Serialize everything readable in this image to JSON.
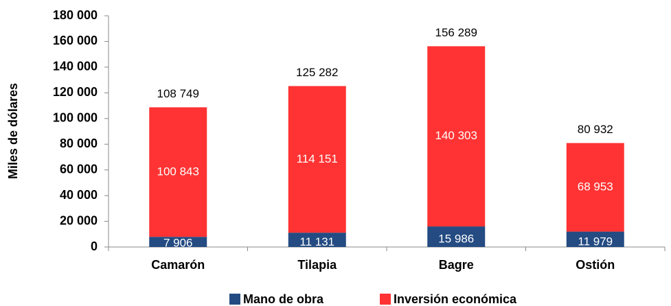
{
  "chart_data": {
    "type": "stacked_bar",
    "y_label": "Miles de dólares",
    "categories": [
      "Camarón",
      "Tilapia",
      "Bagre",
      "Ostión"
    ],
    "series": [
      {
        "name": "Mano de obra",
        "color": "#244b82",
        "values": [
          7906,
          11131,
          15986,
          11979
        ],
        "value_labels": [
          "7 906",
          "11 131",
          "15 986",
          "11 979"
        ]
      },
      {
        "name": "Inversión económica",
        "color": "#ff3333",
        "values": [
          100843,
          114151,
          140303,
          68953
        ],
        "value_labels": [
          "100 843",
          "114 151",
          "140 303",
          "68 953"
        ]
      }
    ],
    "total_labels": [
      "108 749",
      "125 282",
      "156 289",
      "80 932"
    ],
    "ylim": [
      0,
      180000
    ],
    "yticks": [
      0,
      {
        "value": 20000,
        "label": "20 000"
      },
      {
        "value": 40000,
        "label": "40 000"
      },
      {
        "value": 60000,
        "label": "60 000"
      },
      {
        "value": 80000,
        "label": "80 000"
      },
      {
        "value": 100000,
        "label": "100 000"
      },
      {
        "value": 120000,
        "label": "120 000"
      },
      {
        "value": 140000,
        "label": "140 000"
      },
      {
        "value": 160000,
        "label": "160 000"
      },
      {
        "value": 180000,
        "label": "180 000"
      }
    ],
    "legend": "bottom"
  }
}
